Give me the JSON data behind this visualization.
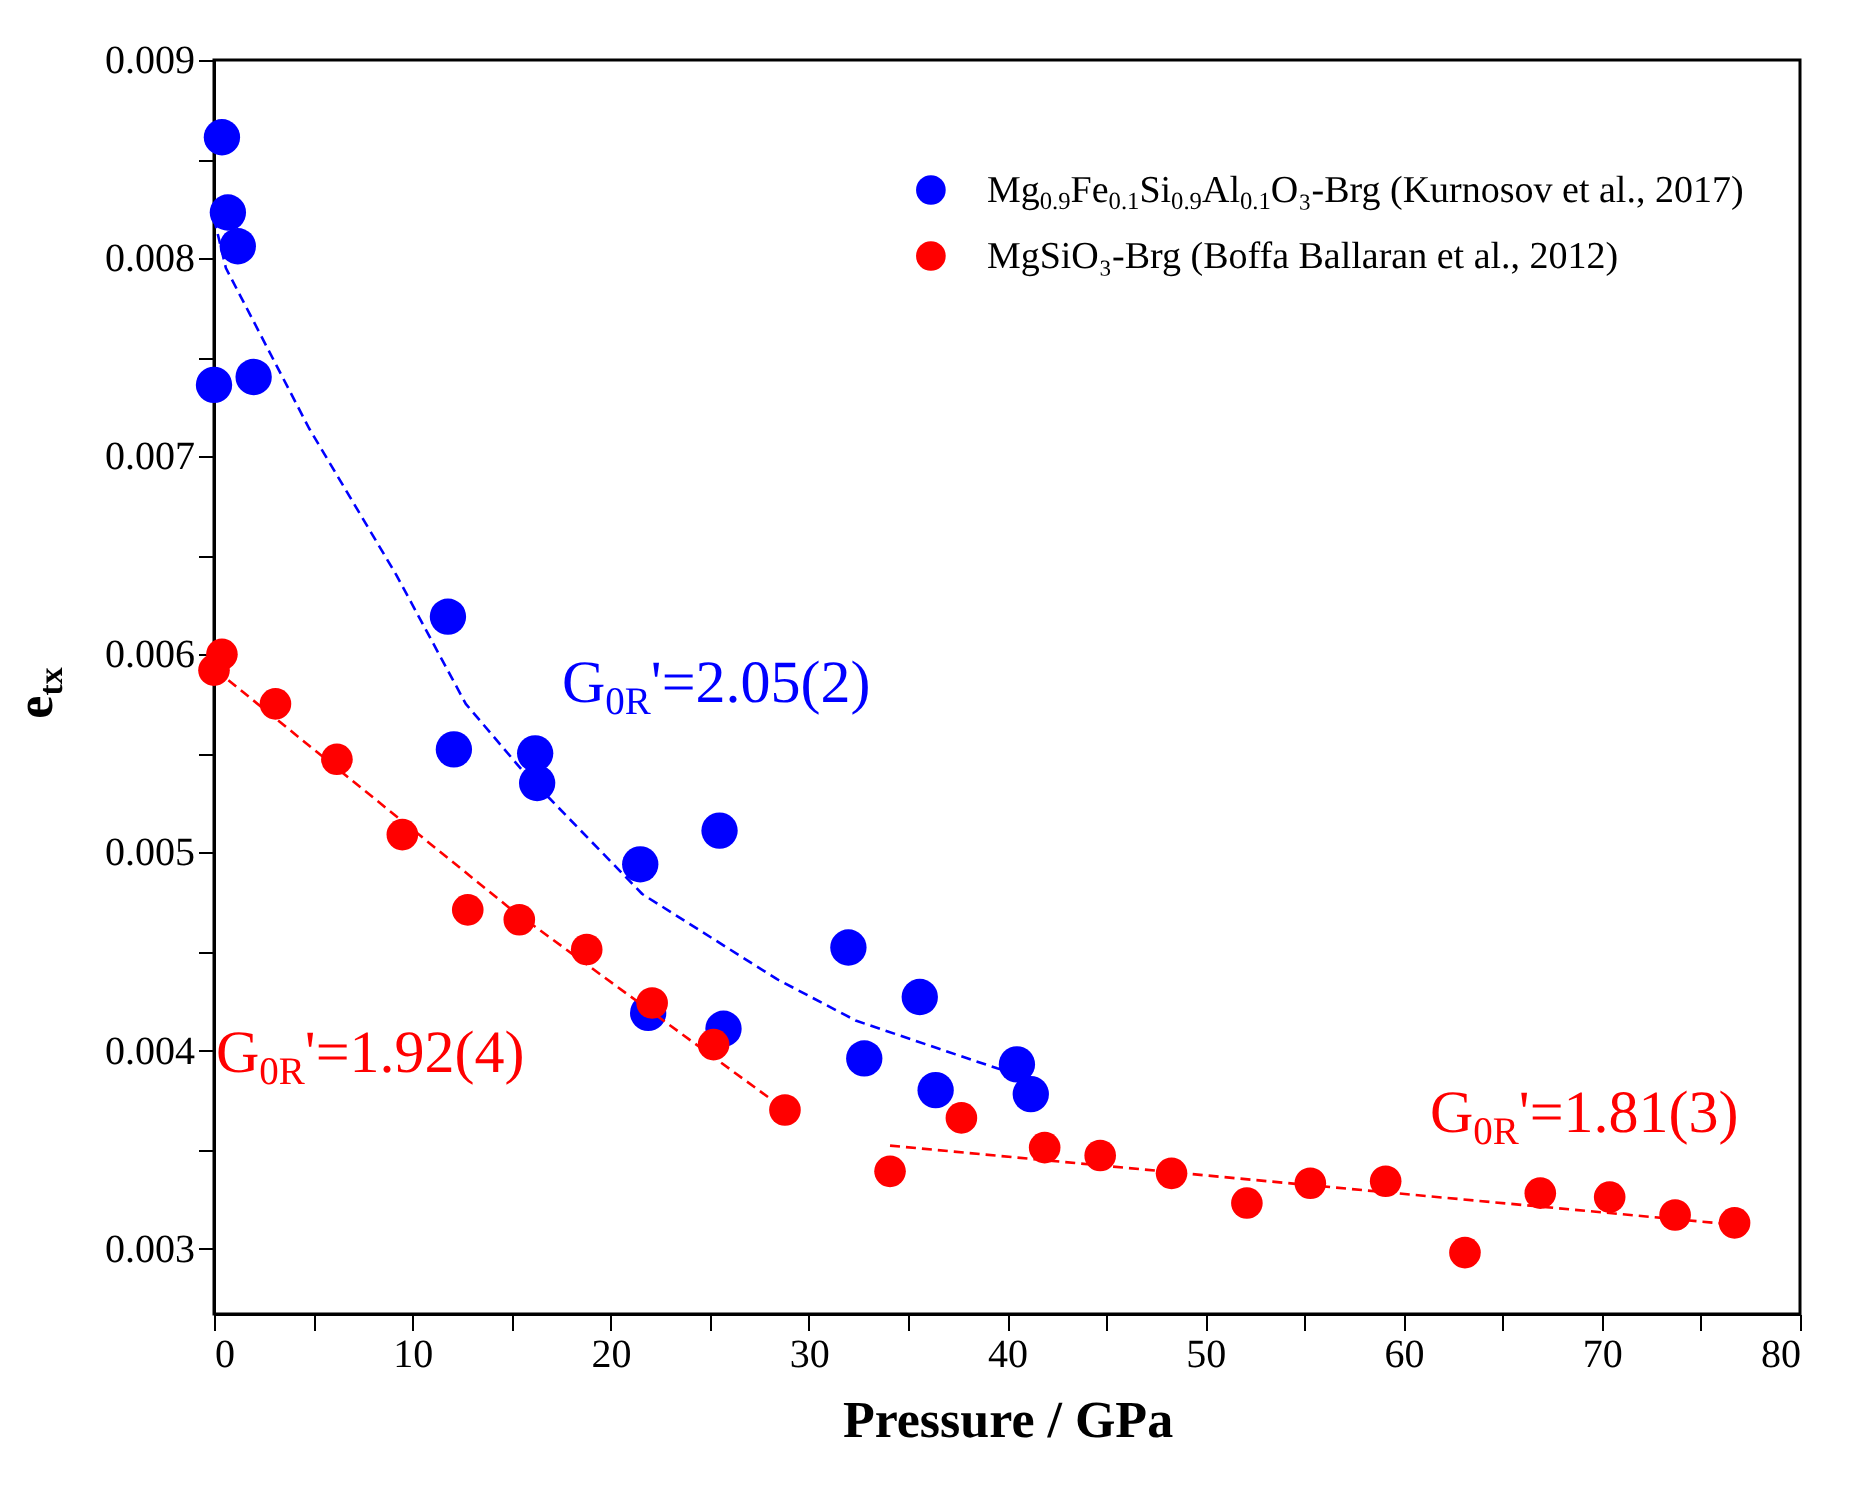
{
  "chart_data": {
    "type": "scatter",
    "xlabel": "Pressure / GPa",
    "ylabel": "e$_{tx}$",
    "xlim": [
      0,
      80
    ],
    "xticks": [
      0,
      {
        "value": 5,
        "label": null
      },
      10,
      {
        "value": 15,
        "label": null
      },
      20,
      {
        "value": 25,
        "label": null
      },
      30,
      {
        "value": 35,
        "label": null
      },
      40,
      {
        "value": 45,
        "label": null
      },
      50,
      {
        "value": 55,
        "label": null
      },
      60,
      {
        "value": 65,
        "label": null
      },
      70,
      {
        "value": 75,
        "label": null
      },
      80
    ],
    "ylim": [
      0.00267,
      0.009
    ],
    "yticks": [
      0.003,
      {
        "value": 0.0035,
        "label": null
      },
      0.004,
      {
        "value": 0.0045,
        "label": null
      },
      0.005,
      {
        "value": 0.0055,
        "label": null
      },
      0.006,
      {
        "value": 0.0065,
        "label": null
      },
      0.007,
      {
        "value": 0.0075,
        "label": null
      },
      0.008,
      {
        "value": 0.0085,
        "label": null
      },
      0.009
    ],
    "grid": false,
    "legend": "top right",
    "series": [
      {
        "name": "Mg$_{0.9}$Fe$_{0.1}$Si$_{0.9}$Al$_{0.1}$O₃-Brg (Kurnosov et al., 2017)",
        "color": "#0000ff",
        "marker": "circle",
        "x": [
          0.4,
          0.7,
          1.2,
          0,
          2.0,
          11.8,
          12.1,
          16.2,
          16.3,
          21.5,
          25.5,
          21.9,
          25.7,
          32.0,
          32.8,
          35.6,
          36.4,
          40.5,
          41.2
        ],
        "values": [
          0.00861,
          0.00823,
          0.00806,
          0.00736,
          0.0074,
          0.00619,
          0.00552,
          0.0055,
          0.00535,
          0.00494,
          0.00511,
          0.00419,
          0.00411,
          0.00452,
          0.00396,
          0.00427,
          0.0038,
          0.00393,
          0.00378
        ]
      },
      {
        "name": "MgSiO₃-Brg (Boffa Ballaran et al., 2012)",
        "color": "#ff0000",
        "marker": "circle",
        "x": [
          0.4,
          0,
          3.1,
          6.2,
          9.5,
          12.8,
          15.4,
          18.8,
          22.1,
          25.2,
          28.8,
          34.1,
          37.7,
          41.9,
          44.7,
          48.3,
          52.1,
          55.3,
          59.1,
          63.1,
          66.9,
          70.4,
          73.7,
          76.7
        ],
        "values": [
          0.006,
          0.00592,
          0.00575,
          0.00547,
          0.00509,
          0.00471,
          0.00466,
          0.00451,
          0.00424,
          0.00403,
          0.0037,
          0.00339,
          0.00366,
          0.00351,
          0.00347,
          0.00338,
          0.00323,
          0.00333,
          0.00334,
          0.00298,
          0.00328,
          0.00326,
          0.00317,
          0.00313
        ]
      },
      {
        "color": "#0000ff",
        "type": "line",
        "line_style": "dashed",
        "x": [
          0.0,
          0.6,
          4.8,
          9.2,
          12.7,
          15.5,
          21.6,
          28.4,
          32.4,
          39.5,
          40.5
        ],
        "values": [
          0.0082,
          0.00795,
          0.00714,
          0.0064,
          0.00575,
          0.00542,
          0.00479,
          0.00436,
          0.00415,
          0.00391,
          0.00388
        ]
      },
      {
        "color": "#ff0000",
        "type": "line",
        "line_style": "dashed",
        "x": [
          0.1,
          14.9,
          28.7
        ],
        "values": [
          0.00592,
          0.00472,
          0.00371
        ]
      },
      {
        "color": "#ff0000",
        "type": "line",
        "line_style": "dashed",
        "x": [
          34.1,
          55.3,
          76.8
        ],
        "values": [
          0.00352,
          0.00332,
          0.00312
        ]
      }
    ],
    "annotations": [
      "G$_{0R}$'=2.05(2)",
      "G$_{0R}$'=1.92(4)",
      "G$_{0R}$'=1.81(3)"
    ]
  }
}
